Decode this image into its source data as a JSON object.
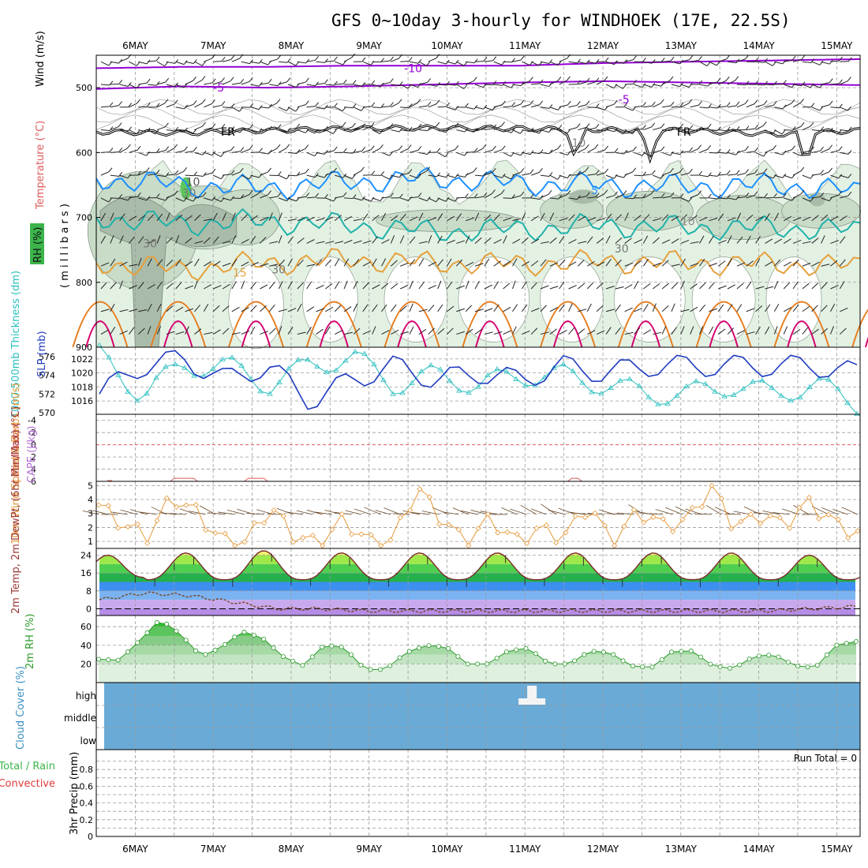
{
  "header": {
    "title": "GFS 0~10day 3-hourly for WINDHOEK (17E, 22.5S)"
  },
  "colors": {
    "temp_m10": "#9400d3",
    "temp_m5": "#9400d3",
    "freezing": "#000000",
    "temp_5": "#1e90ff",
    "temp_10": "#20b2aa",
    "temp_15": "#e6a03c",
    "temp_20": "#e67e22",
    "temp_25": "#d6006e",
    "rh_light": "#e3f1e3",
    "rh_mid": "#c8dcc8",
    "rh_dark": "#a9bca9",
    "slp": "#1f3bbf",
    "thickness": "#2bbfbf",
    "lifted": "#e05a5a",
    "wind": "#e69a3c",
    "rh2m": "#2c9a2c",
    "cloud": "#6aaad6"
  },
  "chart_data": [
    {
      "type": "line",
      "panel": "upper_air",
      "xlabel": "date",
      "ylabel": "millibars",
      "y_axis_title": "( m i l l i b a r s )",
      "legend_labels": {
        "rh": "RH (%)",
        "temperature": "Temperature (°C)",
        "wind": "Wind (m/s)"
      },
      "ylim": [
        450,
        900
      ],
      "ytick_labels": [
        "500",
        "600",
        "700",
        "800",
        "900"
      ],
      "xlim_days": [
        5.5,
        15.3
      ],
      "x_categories": [
        "6MAY",
        "7MAY",
        "8MAY",
        "9MAY",
        "10MAY",
        "11MAY",
        "12MAY",
        "13MAY",
        "14MAY",
        "15MAY"
      ],
      "contour_labels": [
        "-10",
        "-5",
        "-5",
        "FR",
        "FR",
        "5",
        "10",
        "15",
        "10",
        "30",
        "30",
        "30",
        "10",
        "30"
      ],
      "isotherms": [
        {
          "name": "-10",
          "values_hpa": [
            470,
            468,
            468,
            466,
            466,
            466,
            462,
            460,
            458,
            456
          ]
        },
        {
          "name": "-5",
          "values_hpa": [
            502,
            498,
            500,
            498,
            495,
            492,
            490,
            492,
            494,
            496
          ]
        },
        {
          "name": "FR",
          "values_hpa": [
            568,
            570,
            566,
            563,
            562,
            563,
            565,
            566,
            572,
            566
          ]
        },
        {
          "name": "5",
          "values_hpa": [
            640,
            650,
            655,
            645,
            640,
            648,
            650,
            652,
            650,
            660
          ]
        },
        {
          "name": "10",
          "values_hpa": [
            700,
            710,
            706,
            712,
            722,
            718,
            712,
            716,
            716,
            720
          ]
        },
        {
          "name": "15",
          "values_hpa": [
            770,
            780,
            770,
            765,
            770,
            772,
            768,
            770,
            772,
            775
          ]
        }
      ]
    },
    {
      "type": "line",
      "panel": "slp_thickness",
      "series": [
        {
          "name": "SLP (mb)",
          "ytick_labels": [
            "1016",
            "1018",
            "1020",
            "1022"
          ],
          "values": [
            1017,
            1021,
            1022,
            1019,
            1021,
            1016,
            1019,
            1021,
            1019,
            1020,
            1019,
            1021,
            1020,
            1021,
            1021,
            1021,
            1021,
            1021,
            1020
          ]
        },
        {
          "name": "1000-500mb Thickness (dm)",
          "ytick_labels": [
            "570",
            "572",
            "574",
            "576"
          ],
          "values": [
            576,
            572,
            575,
            575,
            573,
            575,
            576,
            573,
            574,
            573,
            574,
            574,
            573,
            572,
            572,
            573,
            572,
            573,
            571
          ]
        }
      ]
    },
    {
      "type": "line",
      "panel": "cape_lifted",
      "series": [
        {
          "name": "Lifted Index",
          "ytick_labels": [
            "-4",
            "-2",
            "0",
            "2",
            "4",
            "6"
          ],
          "values": [
            6,
            6,
            6,
            5.5,
            6,
            5.5,
            6,
            6,
            6,
            6,
            5.6,
            6,
            6,
            6
          ]
        },
        {
          "name": "CAPE (J/kg)",
          "values": [
            0,
            0,
            0,
            0,
            0,
            0,
            0,
            0,
            0,
            0,
            0,
            0,
            0,
            0
          ]
        }
      ]
    },
    {
      "type": "line",
      "panel": "wind10m",
      "name": "10m Wind Speed & Barbs (m/s)",
      "ylim": [
        0.5,
        5.3
      ],
      "ytick_labels": [
        "1",
        "2",
        "3",
        "4",
        "5"
      ],
      "values": [
        3.6,
        2.2,
        1.4,
        4.2,
        3.1,
        1.1,
        0.9,
        3.5,
        1.4,
        0.8,
        2.6,
        1.0,
        1.0,
        4.9,
        2.6,
        0.9,
        2.7,
        1.0,
        1.9,
        1.3,
        3.6,
        0.8,
        3.2,
        2.2,
        2.4,
        5.0,
        2.0,
        2.9,
        2.2,
        3.8,
        2.4,
        1.5
      ]
    },
    {
      "type": "area",
      "panel": "temp2m",
      "name": "2m Temp, 2m DewPt, (6hr Min/Max) (°C)",
      "ylim": [
        -3,
        27
      ],
      "ytick_labels": [
        "0",
        "8",
        "16",
        "24"
      ],
      "temp_max": [
        24,
        25,
        26,
        25,
        25,
        25,
        25,
        25,
        25,
        24
      ],
      "temp_min": [
        14,
        13,
        13,
        13,
        13,
        13,
        13,
        13,
        13,
        13
      ],
      "dewpoint": [
        4,
        7,
        6,
        3,
        0,
        0,
        -1,
        -1,
        -1,
        -1,
        -1,
        -1,
        -1,
        -1,
        -1,
        -1,
        0,
        1
      ]
    },
    {
      "type": "area",
      "panel": "rh2m",
      "name": "2m RH (%)",
      "ylim": [
        0,
        72
      ],
      "ytick_labels": [
        "20",
        "40",
        "60"
      ],
      "values": [
        25,
        24,
        45,
        68,
        52,
        28,
        38,
        55,
        48,
        28,
        18,
        40,
        38,
        14,
        14,
        32,
        40,
        38,
        20,
        20,
        34,
        37,
        20,
        20,
        34,
        32,
        18,
        16,
        33,
        34,
        18,
        15,
        28,
        30,
        18,
        16,
        40,
        44
      ]
    },
    {
      "type": "bar",
      "panel": "cloud_cover",
      "name": "Cloud Cover (%)",
      "levels": [
        "high",
        "middle",
        "low"
      ],
      "high_cloud_event_day": 11.1
    },
    {
      "type": "bar",
      "panel": "precip",
      "name": "3hr Precip (mm)",
      "legend": [
        "Total / Rain",
        "Convective"
      ],
      "ylim": [
        0,
        1
      ],
      "ytick_labels": [
        "0",
        "0.2",
        "0.4",
        "0.6",
        "0.8"
      ],
      "values": [],
      "run_total_label": "Run Total = 0"
    }
  ]
}
